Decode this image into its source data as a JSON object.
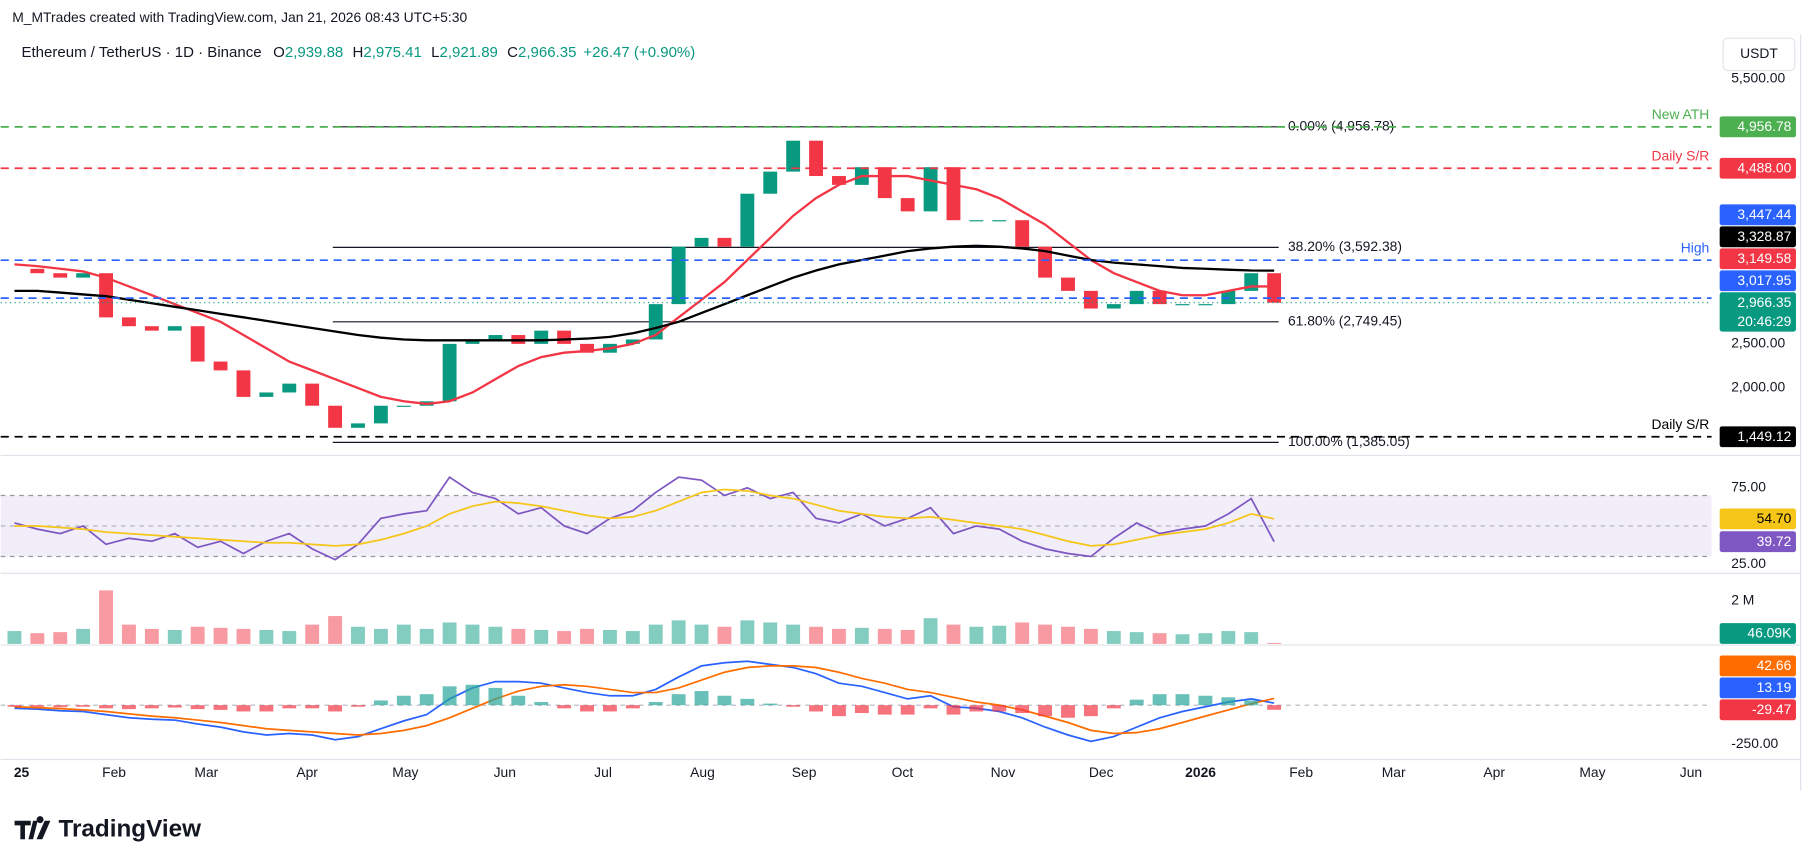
{
  "header": {
    "attribution": "M_MTrades created with TradingView.com, Jan 21, 2026 08:43 UTC+5:30",
    "symbol": "Ethereum / TetherUS · 1D · Binance",
    "ohlc": [
      {
        "key": "O",
        "value": "2,939.88"
      },
      {
        "key": "H",
        "value": "2,975.41"
      },
      {
        "key": "L",
        "value": "2,921.89"
      },
      {
        "key": "C",
        "value": "2,966.35"
      }
    ],
    "change": "+26.47 (+0.90%)",
    "currency": "USDT"
  },
  "footer": {
    "logo": "TradingView"
  },
  "chart_data": [
    {
      "type": "candlestick",
      "xlim": [
        -0.6,
        74.1
      ],
      "xticks": [
        {
          "value": 0.31,
          "label": "25",
          "bold": true
        },
        {
          "value": 4.35,
          "label": "Feb"
        },
        {
          "value": 8.38,
          "label": "Mar"
        },
        {
          "value": 12.78,
          "label": "Apr"
        },
        {
          "value": 17.07,
          "label": "May"
        },
        {
          "value": 21.41,
          "label": "Jun"
        },
        {
          "value": 25.7,
          "label": "Jul"
        },
        {
          "value": 30.04,
          "label": "Aug"
        },
        {
          "value": 34.48,
          "label": "Sep"
        },
        {
          "value": 38.77,
          "label": "Oct"
        },
        {
          "value": 43.16,
          "label": "Nov"
        },
        {
          "value": 47.45,
          "label": "Dec"
        },
        {
          "value": 51.79,
          "label": "2026",
          "bold": true
        },
        {
          "value": 56.18,
          "label": "Feb"
        },
        {
          "value": 60.22,
          "label": "Mar"
        },
        {
          "value": 64.61,
          "label": "Apr"
        },
        {
          "value": 68.9,
          "label": "May"
        },
        {
          "value": 73.2,
          "label": "Jun"
        }
      ],
      "ylim": [
        1250,
        6000
      ],
      "yticks": [
        {
          "value": 5500,
          "label": "5,500.00"
        },
        {
          "value": 2500,
          "label": "2,500.00"
        },
        {
          "value": 2000,
          "label": "2,000.00"
        }
      ],
      "series": [
        {
          "style": "candle",
          "up_color": "#089981",
          "down_color": "#f23645",
          "values": [
            3350,
            3300,
            3250,
            3300,
            2800,
            2700,
            2650,
            2700,
            2300,
            2200,
            1900,
            1950,
            2050,
            1800,
            1550,
            1600,
            1800,
            1800,
            1850,
            2500,
            2550,
            2600,
            2500,
            2650,
            2500,
            2400,
            2500,
            2550,
            2950,
            3600,
            3700,
            3600,
            4200,
            4450,
            4800,
            4400,
            4300,
            4500,
            4150,
            4000,
            4500,
            3900,
            3900,
            3900,
            3600,
            3250,
            3100,
            2900,
            2950,
            3100,
            2950,
            2950,
            2950,
            3100,
            3300,
            2966.35
          ]
        },
        {
          "style": "line",
          "color": "#f23645",
          "values": [
            3400,
            3380,
            3350,
            3320,
            3250,
            3150,
            3050,
            2950,
            2850,
            2750,
            2600,
            2450,
            2300,
            2200,
            2100,
            2000,
            1900,
            1850,
            1820,
            1850,
            1950,
            2100,
            2250,
            2350,
            2400,
            2420,
            2450,
            2500,
            2600,
            2800,
            3000,
            3200,
            3450,
            3700,
            3950,
            4150,
            4300,
            4400,
            4400,
            4400,
            4350,
            4300,
            4250,
            4150,
            4000,
            3850,
            3650,
            3450,
            3300,
            3200,
            3100,
            3050,
            3050,
            3100,
            3150,
            3149.58
          ]
        },
        {
          "style": "line",
          "color": "#000000",
          "values": [
            3100,
            3100,
            3080,
            3060,
            3040,
            3000,
            2960,
            2920,
            2880,
            2840,
            2800,
            2760,
            2720,
            2680,
            2640,
            2600,
            2570,
            2550,
            2540,
            2540,
            2540,
            2540,
            2540,
            2540,
            2550,
            2560,
            2580,
            2620,
            2680,
            2750,
            2850,
            2950,
            3050,
            3150,
            3250,
            3330,
            3400,
            3450,
            3500,
            3550,
            3580,
            3600,
            3610,
            3600,
            3580,
            3550,
            3500,
            3450,
            3420,
            3400,
            3380,
            3360,
            3350,
            3340,
            3330,
            3328.87
          ]
        }
      ],
      "fib": {
        "x": [
          13.9,
          55.2
        ],
        "levels": [
          {
            "value": 4956.78,
            "label": "0.00% (4,956.78)"
          },
          {
            "value": 3592.38,
            "label": "38.20% (3,592.38)"
          },
          {
            "value": 2749.45,
            "label": "61.80% (2,749.45)"
          },
          {
            "value": 1385.05,
            "label": "100.00% (1,385.05)"
          }
        ]
      },
      "levels": [
        {
          "value": 4956.78,
          "label": "4,956.78",
          "color": "#4caf50",
          "line": "dashed",
          "text": "New ATH"
        },
        {
          "value": 4488,
          "label": "4,488.00",
          "color": "#f23645",
          "line": "dashed",
          "text": "Daily S/R"
        },
        {
          "value": 3447.44,
          "label": "3,447.44",
          "color": "#2962ff",
          "line": "dashed",
          "text": "High"
        },
        {
          "value": 3328.87,
          "label": "3,328.87",
          "color": "#000000"
        },
        {
          "value": 3149.58,
          "label": "3,149.58",
          "color": "#f23645"
        },
        {
          "value": 3017.95,
          "label": "3,017.95",
          "color": "#2962ff",
          "line": "dashed"
        },
        {
          "value": 2966.35,
          "label": "2,966.35",
          "color": "#089981",
          "line": "dotted",
          "sub": "20:46:29"
        },
        {
          "value": 1449.12,
          "label": "1,449.12",
          "color": "#000000",
          "line": "dashed",
          "text": "Daily S/R"
        }
      ]
    },
    {
      "type": "line",
      "ylim": [
        19.7,
        95.5
      ],
      "yticks": [
        {
          "value": 75,
          "label": "75.00"
        },
        {
          "value": 25,
          "label": "25.00"
        }
      ],
      "band": [
        30,
        70
      ],
      "band_color": "#7e57c2",
      "series": [
        {
          "color": "#7e57c2",
          "values": [
            52,
            48,
            45,
            50,
            38,
            42,
            40,
            45,
            36,
            40,
            32,
            40,
            45,
            35,
            28,
            38,
            55,
            58,
            60,
            82,
            72,
            68,
            58,
            62,
            50,
            45,
            55,
            60,
            72,
            82,
            80,
            70,
            75,
            68,
            72,
            55,
            52,
            58,
            50,
            55,
            62,
            45,
            50,
            48,
            40,
            35,
            32,
            30,
            42,
            52,
            45,
            48,
            50,
            58,
            68,
            39.72
          ]
        },
        {
          "color": "#f5c518",
          "values": [
            50,
            50,
            49,
            48,
            46,
            45,
            44,
            43,
            42,
            41,
            40,
            39,
            39,
            38,
            37,
            38,
            41,
            45,
            50,
            58,
            63,
            66,
            65,
            63,
            60,
            57,
            55,
            56,
            60,
            66,
            72,
            74,
            73,
            70,
            68,
            64,
            60,
            58,
            56,
            55,
            56,
            54,
            52,
            50,
            48,
            44,
            40,
            37,
            38,
            41,
            44,
            46,
            48,
            52,
            58,
            54.7
          ]
        }
      ],
      "levels": [
        {
          "value": 54.7,
          "label": "54.70",
          "color": "#f5c518",
          "text_color": "#000000"
        },
        {
          "value": 39.72,
          "label": "39.72",
          "color": "#7e57c2"
        }
      ]
    },
    {
      "type": "bar",
      "ylim": [
        0,
        3240000
      ],
      "yticks": [
        {
          "value": 2000000,
          "label": "2 M"
        }
      ],
      "up_color": "#089981",
      "down_color": "#f23645",
      "values": [
        600000,
        500000,
        550000,
        700000,
        2500000,
        900000,
        700000,
        650000,
        800000,
        750000,
        700000,
        650000,
        600000,
        900000,
        1300000,
        800000,
        700000,
        900000,
        700000,
        1000000,
        900000,
        800000,
        700000,
        650000,
        600000,
        700000,
        650000,
        600000,
        900000,
        1100000,
        900000,
        800000,
        1100000,
        1000000,
        900000,
        800000,
        700000,
        750000,
        700000,
        650000,
        1200000,
        900000,
        800000,
        850000,
        1000000,
        900000,
        800000,
        700000,
        600000,
        550000,
        500000,
        450000,
        500000,
        600000,
        550000,
        46090
      ],
      "levels": [
        {
          "value": 46090,
          "label": "46.09K",
          "color": "#089981"
        }
      ]
    },
    {
      "type": "macd",
      "ylim": [
        -331,
        368
      ],
      "yticks": [
        {
          "value": -250,
          "label": "-250.00"
        }
      ],
      "series": [
        {
          "style": "line",
          "color": "#2962ff",
          "values": [
            -20,
            -25,
            -35,
            -40,
            -60,
            -80,
            -90,
            -95,
            -120,
            -140,
            -170,
            -190,
            -180,
            -190,
            -220,
            -200,
            -150,
            -100,
            -60,
            40,
            110,
            150,
            150,
            140,
            110,
            80,
            60,
            60,
            100,
            180,
            250,
            270,
            280,
            260,
            240,
            200,
            140,
            120,
            80,
            40,
            60,
            -10,
            -20,
            -40,
            -80,
            -140,
            -190,
            -230,
            -200,
            -140,
            -80,
            -40,
            -10,
            20,
            40,
            13.19
          ]
        },
        {
          "style": "line",
          "color": "#ff6d00",
          "values": [
            -10,
            -15,
            -22,
            -30,
            -40,
            -55,
            -70,
            -80,
            -95,
            -110,
            -130,
            -150,
            -160,
            -170,
            -180,
            -190,
            -180,
            -160,
            -130,
            -80,
            -20,
            40,
            90,
            120,
            130,
            120,
            100,
            80,
            80,
            110,
            160,
            210,
            240,
            250,
            250,
            240,
            210,
            170,
            140,
            100,
            80,
            50,
            20,
            0,
            -30,
            -70,
            -110,
            -160,
            -180,
            -175,
            -150,
            -110,
            -70,
            -30,
            10,
            42.66
          ]
        },
        {
          "style": "histogram",
          "up_color": "#26a69a",
          "down_color": "#f23645",
          "values": [
            -10,
            -10,
            -13,
            -10,
            -20,
            -25,
            -20,
            -15,
            -25,
            -30,
            -40,
            -40,
            -20,
            -20,
            -40,
            -10,
            30,
            60,
            70,
            120,
            130,
            110,
            60,
            20,
            -20,
            -40,
            -40,
            -20,
            20,
            70,
            90,
            60,
            40,
            10,
            -10,
            -40,
            -70,
            -50,
            -60,
            -60,
            -20,
            -60,
            -40,
            -40,
            -50,
            -70,
            -80,
            -70,
            -20,
            35,
            70,
            70,
            60,
            50,
            30,
            -29.47
          ]
        }
      ],
      "levels": [
        {
          "value": 42.66,
          "label": "42.66",
          "color": "#ff6d00"
        },
        {
          "value": 13.19,
          "label": "13.19",
          "color": "#2962ff"
        },
        {
          "value": -29.47,
          "label": "-29.47",
          "color": "#f23645"
        }
      ]
    }
  ]
}
